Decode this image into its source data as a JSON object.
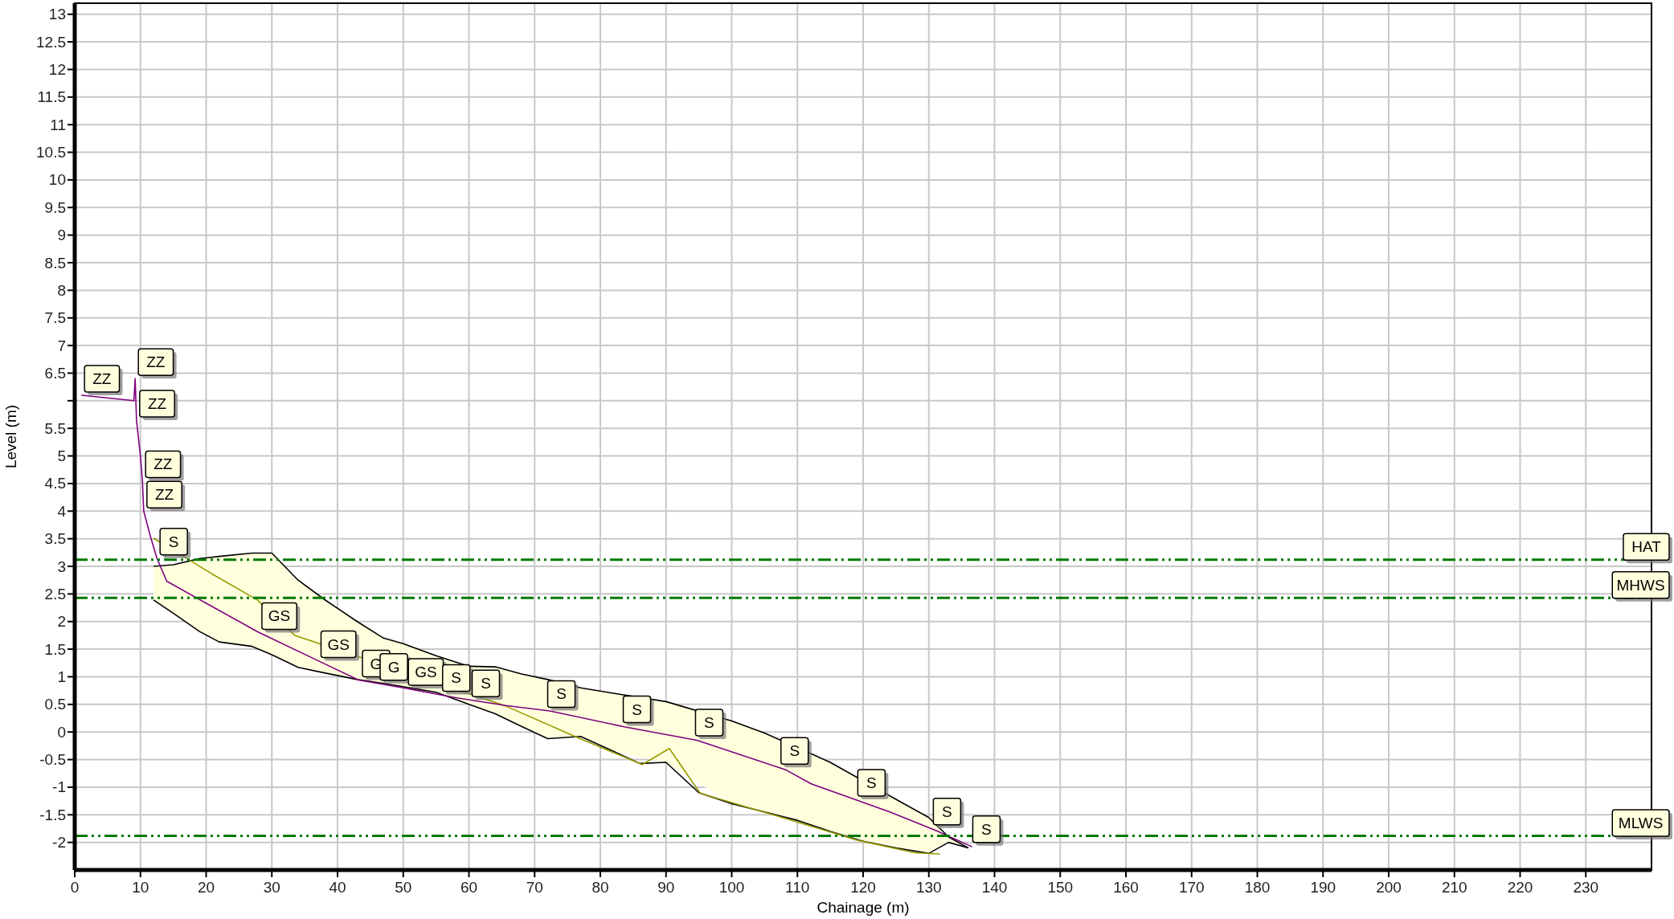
{
  "chart_data": {
    "type": "line",
    "xlabel": "Chainage (m)",
    "ylabel": "Level (m)",
    "xlim": [
      0,
      240
    ],
    "xticks": [
      0,
      10,
      20,
      30,
      40,
      50,
      60,
      70,
      80,
      90,
      100,
      110,
      120,
      130,
      140,
      150,
      160,
      170,
      180,
      190,
      200,
      210,
      220,
      230
    ],
    "ylim": [
      -2.5,
      13.2
    ],
    "yticks": [
      -2,
      -1.5,
      -1,
      -0.5,
      0,
      0.5,
      1,
      1.5,
      2,
      2.5,
      3,
      3.5,
      4,
      4.5,
      5,
      5.5,
      {
        "value": 6,
        "label": null
      },
      6.5,
      7,
      7.5,
      8,
      8.5,
      9,
      9.5,
      10,
      10.5,
      11,
      11.5,
      12,
      12.5,
      13
    ],
    "grid": true,
    "marker": "none",
    "series": [
      {
        "color": "#000000",
        "x": [
          12,
          15,
          19,
          22,
          27,
          30,
          34,
          38,
          43,
          47,
          50,
          55,
          60,
          64,
          68,
          72,
          77,
          82,
          90,
          100,
          105,
          115,
          125,
          130,
          133,
          136
        ],
        "values": [
          3.0,
          3.03,
          3.14,
          3.18,
          3.24,
          3.24,
          2.75,
          2.4,
          2.0,
          1.7,
          1.6,
          1.38,
          1.19,
          1.18,
          1.05,
          0.95,
          0.8,
          0.7,
          0.55,
          0.2,
          -0.02,
          -0.55,
          -1.22,
          -1.55,
          -1.9,
          -2.1
        ],
        "lower": [
          2.39,
          2.15,
          1.82,
          1.63,
          1.55,
          1.4,
          1.17,
          1.07,
          0.95,
          0.88,
          0.82,
          0.72,
          0.5,
          0.33,
          0.1,
          -0.12,
          -0.08,
          -0.35,
          -0.55,
          -1.3,
          -1.45,
          -1.8,
          -2.1,
          -2.2,
          -2.0,
          -2.1
        ],
        "upper": [
          3.0,
          3.03,
          3.14,
          3.18,
          3.24,
          3.24,
          2.75,
          2.4,
          2.0,
          1.7,
          1.6,
          1.38,
          1.19,
          1.18,
          1.05,
          0.95,
          0.8,
          0.7,
          0.55,
          0.2,
          -0.02,
          -0.55,
          -1.22,
          -1.55,
          -1.9,
          -2.1
        ]
      },
      {
        "color": "#000000",
        "x": [
          12,
          15,
          19,
          22,
          27,
          30,
          34,
          38,
          43,
          47,
          50,
          55,
          60,
          64,
          68,
          72,
          77,
          82,
          86,
          90,
          95,
          100,
          105,
          110,
          115,
          120,
          125,
          130,
          133,
          136
        ],
        "values": [
          2.39,
          2.15,
          1.82,
          1.63,
          1.55,
          1.4,
          1.17,
          1.07,
          0.95,
          0.88,
          0.82,
          0.72,
          0.5,
          0.33,
          0.1,
          -0.12,
          -0.08,
          -0.35,
          -0.57,
          -0.55,
          -1.1,
          -1.3,
          -1.45,
          -1.6,
          -1.8,
          -1.98,
          -2.1,
          -2.2,
          -2.0,
          -2.1
        ]
      },
      {
        "color": "#999900",
        "x": [
          12.0,
          20.8,
          27.8,
          33.5,
          65.6,
          76.7,
          86.4,
          90.5,
          95.2,
          101.7,
          106.9,
          119.1,
          128.0,
          131.7
        ],
        "values": [
          3.51,
          2.87,
          2.39,
          1.75,
          0.47,
          -0.11,
          -0.59,
          -0.3,
          -1.11,
          -1.34,
          -1.52,
          -1.96,
          -2.19,
          -2.21
        ]
      },
      {
        "color": "#800080",
        "x": [
          1.0,
          9.0,
          9.2,
          9.4,
          10.0,
          10.3,
          10.5,
          11.5,
          12.5,
          14.0,
          27.9,
          37.4,
          43.2,
          50.0,
          58.0,
          65.6,
          72.3,
          83.8,
          94.7,
          108.3,
          112.1,
          123.9,
          131.2,
          136.6
        ],
        "values": [
          6.1,
          6.0,
          6.4,
          5.65,
          5.0,
          4.55,
          4.0,
          3.55,
          3.15,
          2.73,
          1.81,
          1.27,
          0.94,
          0.8,
          0.62,
          0.48,
          0.38,
          0.09,
          -0.15,
          -0.69,
          -0.94,
          -1.44,
          -1.79,
          -2.08
        ]
      }
    ],
    "ref_lines": [
      {
        "axis": "y",
        "value": 3.12,
        "label": "HAT",
        "color": "#007a00",
        "line_style": "dashed"
      },
      {
        "axis": "y",
        "value": 2.43,
        "label": "MHWS",
        "color": "#007a00",
        "line_style": "dashed"
      },
      {
        "axis": "y",
        "value": -1.88,
        "label": "MLWS",
        "color": "#007a00",
        "line_style": "dashed"
      }
    ],
    "annotations": [
      {
        "text": "ZZ",
        "x": 1.0,
        "y": 6.1
      },
      {
        "text": "ZZ",
        "x": 9.2,
        "y": 6.4
      },
      {
        "text": "ZZ",
        "x": 9.4,
        "y": 5.65
      },
      {
        "text": "ZZ",
        "x": 10.3,
        "y": 4.55
      },
      {
        "text": "ZZ",
        "x": 10.5,
        "y": 4.0
      },
      {
        "text": "S",
        "x": 12.5,
        "y": 3.15
      },
      {
        "text": "GS",
        "x": 28.0,
        "y": 1.8
      },
      {
        "text": "GS",
        "x": 37.0,
        "y": 1.29
      },
      {
        "text": "G",
        "x": 43.3,
        "y": 0.94
      },
      {
        "text": "G",
        "x": 46.0,
        "y": 0.88
      },
      {
        "text": "GS",
        "x": 50.3,
        "y": 0.79
      },
      {
        "text": "S",
        "x": 55.5,
        "y": 0.68
      },
      {
        "text": "S",
        "x": 60.0,
        "y": 0.58
      },
      {
        "text": "S",
        "x": 71.5,
        "y": 0.39
      },
      {
        "text": "S",
        "x": 83.0,
        "y": 0.11
      },
      {
        "text": "S",
        "x": 94.0,
        "y": -0.13
      },
      {
        "text": "S",
        "x": 107.0,
        "y": -0.64
      },
      {
        "text": "S",
        "x": 118.7,
        "y": -1.22
      },
      {
        "text": "S",
        "x": 130.2,
        "y": -1.74
      },
      {
        "text": "S",
        "x": 136.2,
        "y": -2.06
      }
    ]
  }
}
